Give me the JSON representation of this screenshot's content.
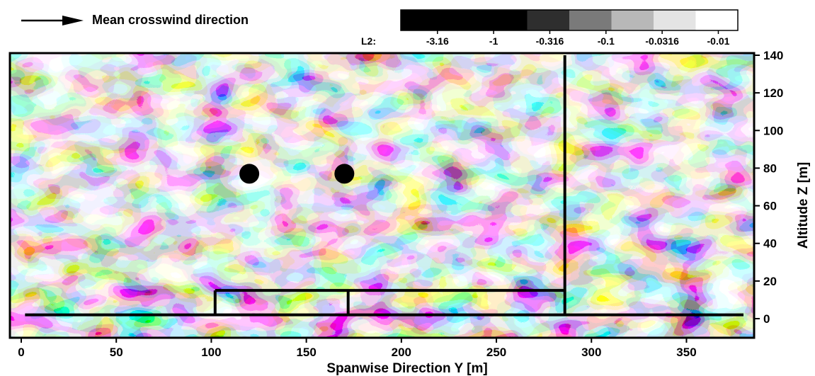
{
  "header": {
    "direction_label": "Mean crosswind direction",
    "arrow_icon": "right-arrow-icon"
  },
  "chart_data": {
    "type": "heatmap",
    "title": "",
    "xlabel": "Spanwise Direction Y [m]",
    "ylabel": "Altitude Z [m]",
    "xlim": [
      0,
      380
    ],
    "ylim": [
      0,
      140
    ],
    "xticks": [
      0,
      50,
      100,
      150,
      200,
      250,
      300,
      350
    ],
    "yticks": [
      0,
      20,
      40,
      60,
      80,
      100,
      120,
      140
    ],
    "xtick_labels": [
      "0",
      "50",
      "100",
      "150",
      "200",
      "250",
      "300",
      "350"
    ],
    "ytick_labels": [
      "0",
      "20",
      "40",
      "60",
      "80",
      "100",
      "120",
      "140"
    ],
    "colorbar": {
      "label": "L2:",
      "levels": [
        "-3.16",
        "-1",
        "-0.316",
        "-0.1",
        "-0.0316",
        "-0.01"
      ],
      "colors": [
        "#000000",
        "#000000",
        "#000000",
        "#2e2e2e",
        "#7a7a7a",
        "#b8b8b8",
        "#e4e4e4",
        "#ffffff"
      ]
    },
    "vortex_cores": [
      {
        "y": 120,
        "z": 77
      },
      {
        "y": 170,
        "z": 77
      }
    ],
    "vertical_lines": [
      {
        "y": 102,
        "z_min": 2,
        "z_max": 15
      },
      {
        "y": 172,
        "z_min": 2,
        "z_max": 15
      },
      {
        "y": 286,
        "z_min": 2,
        "z_max": 140
      }
    ],
    "horizontal_lines": [
      {
        "y_min": 2,
        "y_max": 380,
        "z": 2
      },
      {
        "y_min": 102,
        "y_max": 286,
        "z": 15
      }
    ]
  }
}
